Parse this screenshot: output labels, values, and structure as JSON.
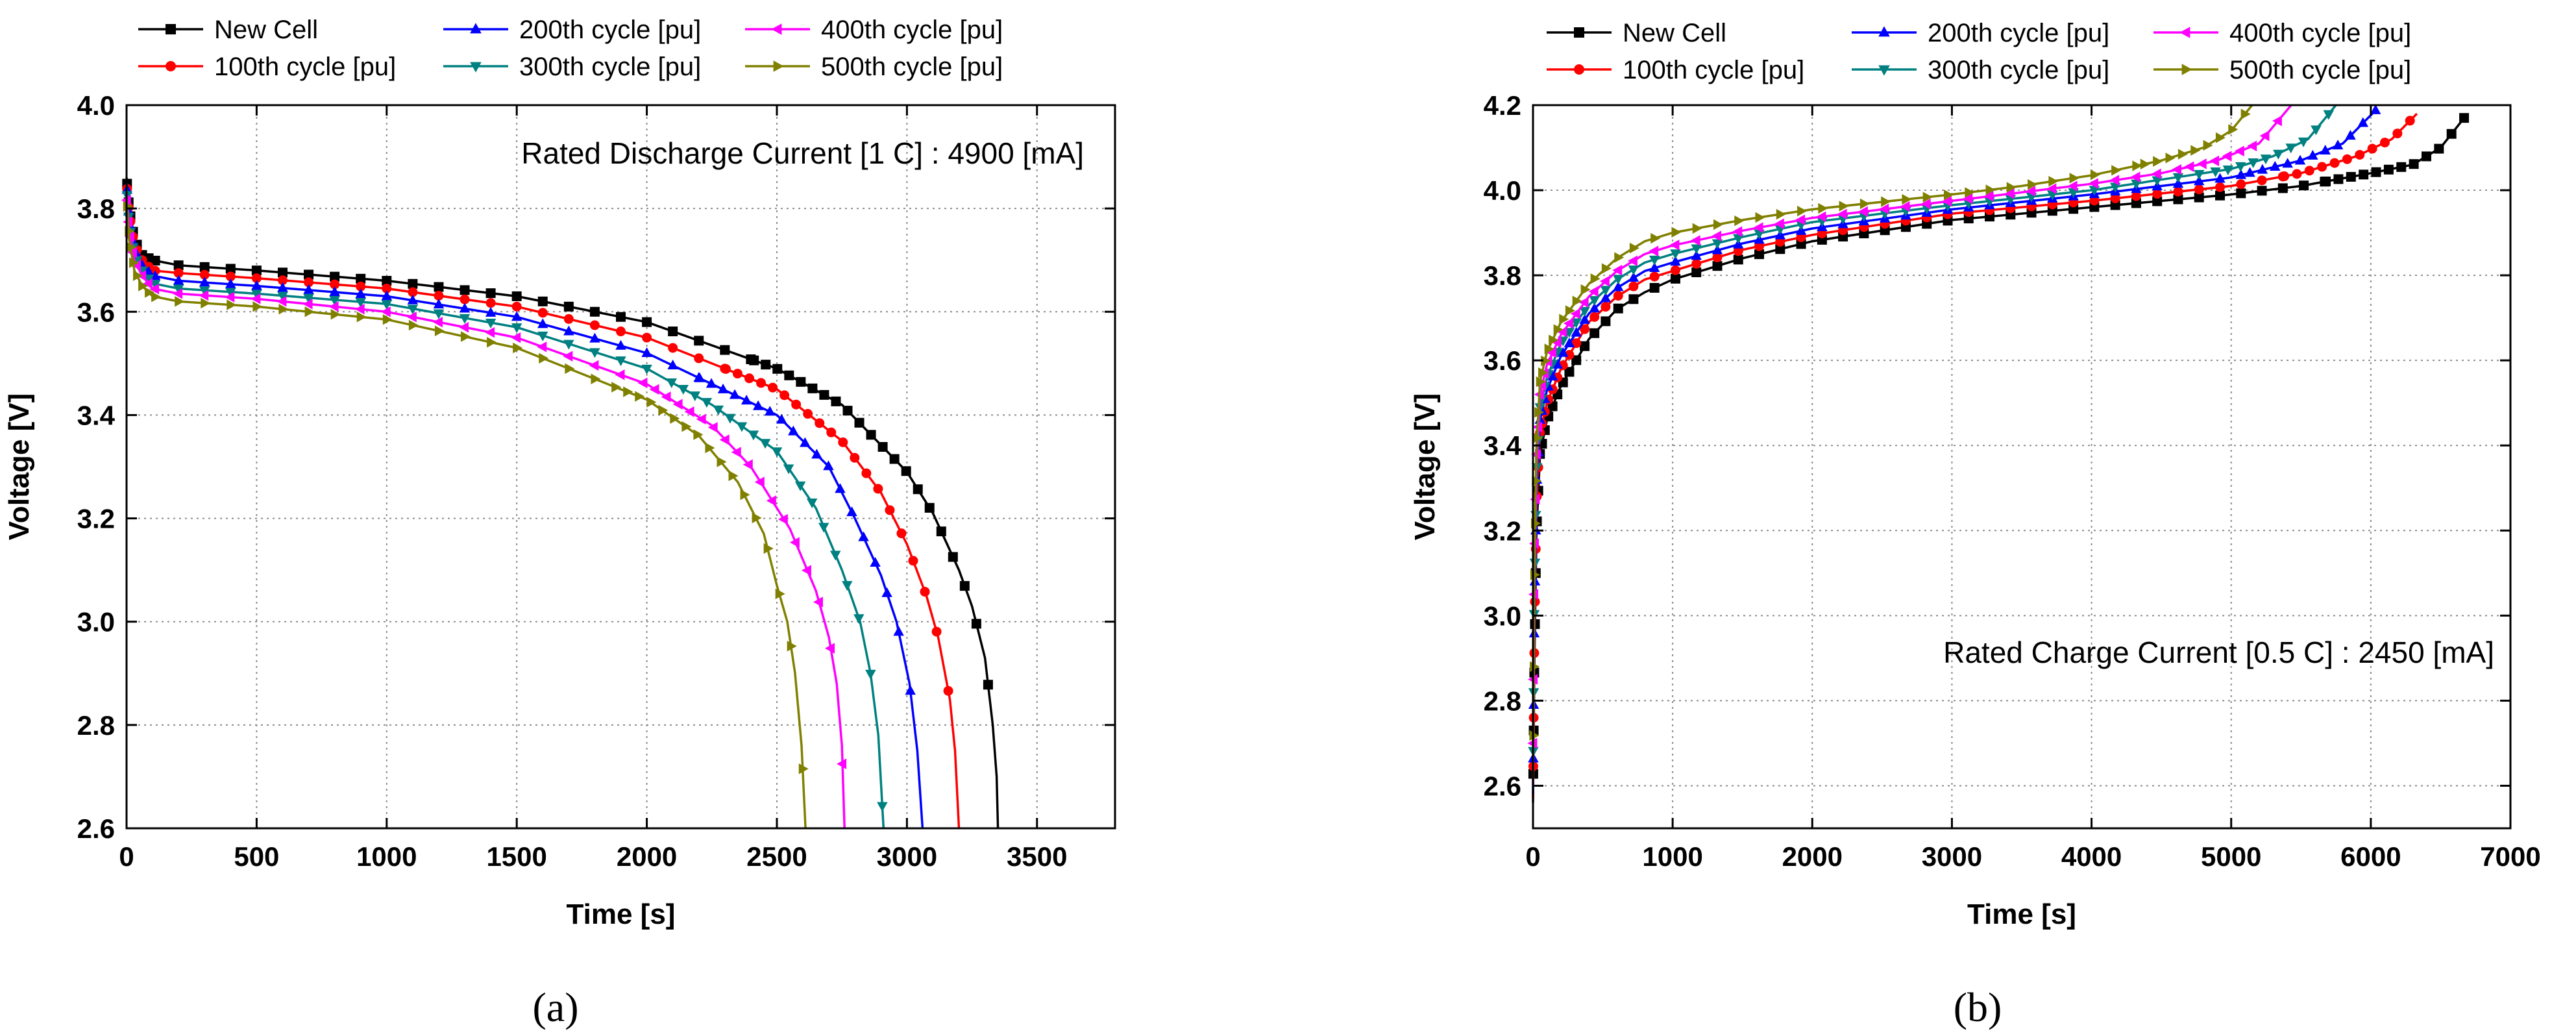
{
  "chart_data": [
    {
      "type": "line",
      "panel_label": "(a)",
      "title": "",
      "xlabel": "Time [s]",
      "ylabel": "Voltage [V]",
      "xlim": [
        0,
        3800
      ],
      "ylim": [
        2.6,
        4.0
      ],
      "x_ticks": [
        0,
        500,
        1000,
        1500,
        2000,
        2500,
        3000,
        3500
      ],
      "y_ticks": [
        "2.6",
        "2.8",
        "3.0",
        "3.2",
        "3.4",
        "3.6",
        "3.8",
        "4.0"
      ],
      "grid": true,
      "legend_position": "above plot",
      "annotation": "Rated Discharge Current [1 C] : 4900 [mA]",
      "series": [
        {
          "name": "New Cell",
          "color": "#000000",
          "marker": "square",
          "end_time": 3350,
          "points": [
            [
              0,
              3.86
            ],
            [
              10,
              3.8
            ],
            [
              30,
              3.74
            ],
            [
              60,
              3.71
            ],
            [
              100,
              3.7
            ],
            [
              200,
              3.69
            ],
            [
              500,
              3.68
            ],
            [
              1000,
              3.66
            ],
            [
              1500,
              3.63
            ],
            [
              2000,
              3.58
            ],
            [
              2500,
              3.49
            ],
            [
              2750,
              3.42
            ],
            [
              3000,
              3.29
            ],
            [
              3100,
              3.21
            ],
            [
              3200,
              3.1
            ],
            [
              3250,
              3.03
            ],
            [
              3300,
              2.93
            ],
            [
              3330,
              2.8
            ],
            [
              3345,
              2.7
            ],
            [
              3350,
              2.6
            ]
          ]
        },
        {
          "name": "100th cycle [pu]",
          "color": "#ff0000",
          "marker": "circle",
          "end_time": 3200,
          "points": [
            [
              0,
              3.85
            ],
            [
              10,
              3.79
            ],
            [
              30,
              3.73
            ],
            [
              60,
              3.7
            ],
            [
              100,
              3.68
            ],
            [
              200,
              3.675
            ],
            [
              500,
              3.665
            ],
            [
              1000,
              3.645
            ],
            [
              1500,
              3.61
            ],
            [
              2000,
              3.55
            ],
            [
              2500,
              3.45
            ],
            [
              2750,
              3.35
            ],
            [
              2900,
              3.25
            ],
            [
              3000,
              3.15
            ],
            [
              3075,
              3.05
            ],
            [
              3120,
              2.97
            ],
            [
              3165,
              2.85
            ],
            [
              3185,
              2.75
            ],
            [
              3200,
              2.6
            ]
          ]
        },
        {
          "name": "200th cycle [pu]",
          "color": "#0000ff",
          "marker": "triangle-up",
          "end_time": 3060,
          "points": [
            [
              0,
              3.85
            ],
            [
              10,
              3.78
            ],
            [
              30,
              3.72
            ],
            [
              60,
              3.69
            ],
            [
              100,
              3.67
            ],
            [
              200,
              3.66
            ],
            [
              500,
              3.65
            ],
            [
              1000,
              3.63
            ],
            [
              1500,
              3.59
            ],
            [
              2000,
              3.52
            ],
            [
              2500,
              3.4
            ],
            [
              2700,
              3.3
            ],
            [
              2800,
              3.2
            ],
            [
              2900,
              3.09
            ],
            [
              2960,
              3.0
            ],
            [
              3010,
              2.88
            ],
            [
              3040,
              2.75
            ],
            [
              3060,
              2.6
            ]
          ]
        },
        {
          "name": "300th cycle [pu]",
          "color": "#008080",
          "marker": "triangle-down",
          "end_time": 2910,
          "points": [
            [
              0,
              3.84
            ],
            [
              10,
              3.77
            ],
            [
              30,
              3.71
            ],
            [
              60,
              3.68
            ],
            [
              100,
              3.655
            ],
            [
              200,
              3.645
            ],
            [
              500,
              3.635
            ],
            [
              1000,
              3.615
            ],
            [
              1500,
              3.57
            ],
            [
              2000,
              3.49
            ],
            [
              2250,
              3.42
            ],
            [
              2500,
              3.33
            ],
            [
              2650,
              3.22
            ],
            [
              2750,
              3.1
            ],
            [
              2820,
              3.0
            ],
            [
              2860,
              2.9
            ],
            [
              2890,
              2.78
            ],
            [
              2910,
              2.6
            ]
          ]
        },
        {
          "name": "400th cycle [pu]",
          "color": "#ff00ff",
          "marker": "triangle-left",
          "end_time": 2760,
          "points": [
            [
              0,
              3.83
            ],
            [
              10,
              3.76
            ],
            [
              30,
              3.7
            ],
            [
              60,
              3.67
            ],
            [
              100,
              3.645
            ],
            [
              200,
              3.635
            ],
            [
              500,
              3.625
            ],
            [
              1000,
              3.6
            ],
            [
              1500,
              3.55
            ],
            [
              2000,
              3.46
            ],
            [
              2250,
              3.38
            ],
            [
              2400,
              3.3
            ],
            [
              2550,
              3.18
            ],
            [
              2650,
              3.06
            ],
            [
              2700,
              2.97
            ],
            [
              2730,
              2.88
            ],
            [
              2750,
              2.76
            ],
            [
              2760,
              2.6
            ]
          ]
        },
        {
          "name": "500th cycle [pu]",
          "color": "#808000",
          "marker": "triangle-right",
          "end_time": 2610,
          "points": [
            [
              0,
              3.82
            ],
            [
              10,
              3.74
            ],
            [
              30,
              3.68
            ],
            [
              60,
              3.65
            ],
            [
              100,
              3.63
            ],
            [
              200,
              3.62
            ],
            [
              500,
              3.61
            ],
            [
              1000,
              3.585
            ],
            [
              1500,
              3.53
            ],
            [
              2000,
              3.43
            ],
            [
              2200,
              3.36
            ],
            [
              2350,
              3.27
            ],
            [
              2450,
              3.17
            ],
            [
              2500,
              3.07
            ],
            [
              2540,
              3.0
            ],
            [
              2570,
              2.9
            ],
            [
              2595,
              2.76
            ],
            [
              2610,
              2.6
            ]
          ]
        }
      ]
    },
    {
      "type": "line",
      "panel_label": "(b)",
      "title": "",
      "xlabel": "Time [s]",
      "ylabel": "Voltage [V]",
      "xlim": [
        0,
        7000
      ],
      "ylim": [
        2.5,
        4.2
      ],
      "x_ticks": [
        0,
        1000,
        2000,
        3000,
        4000,
        5000,
        6000,
        7000
      ],
      "y_ticks": [
        "2.6",
        "2.8",
        "3.0",
        "3.2",
        "3.4",
        "3.6",
        "3.8",
        "4.0",
        "4.2"
      ],
      "grid": true,
      "legend_position": "above plot",
      "annotation": "Rated Charge Current [0.5 C] : 2450 [mA]",
      "series": [
        {
          "name": "New Cell",
          "color": "#000000",
          "marker": "square",
          "end_time": 6680,
          "points": [
            [
              0,
              2.56
            ],
            [
              10,
              2.9
            ],
            [
              25,
              3.2
            ],
            [
              50,
              3.38
            ],
            [
              100,
              3.46
            ],
            [
              200,
              3.54
            ],
            [
              400,
              3.65
            ],
            [
              600,
              3.72
            ],
            [
              800,
              3.76
            ],
            [
              1000,
              3.79
            ],
            [
              1500,
              3.84
            ],
            [
              2000,
              3.88
            ],
            [
              3000,
              3.93
            ],
            [
              4000,
              3.96
            ],
            [
              5000,
              3.99
            ],
            [
              5500,
              4.01
            ],
            [
              6000,
              4.04
            ],
            [
              6300,
              4.06
            ],
            [
              6500,
              4.1
            ],
            [
              6680,
              4.175
            ]
          ]
        },
        {
          "name": "100th cycle [pu]",
          "color": "#ff0000",
          "marker": "circle",
          "end_time": 6330,
          "points": [
            [
              0,
              2.57
            ],
            [
              10,
              2.95
            ],
            [
              25,
              3.26
            ],
            [
              50,
              3.43
            ],
            [
              100,
              3.5
            ],
            [
              200,
              3.58
            ],
            [
              400,
              3.69
            ],
            [
              600,
              3.75
            ],
            [
              800,
              3.79
            ],
            [
              1000,
              3.81
            ],
            [
              1500,
              3.86
            ],
            [
              2000,
              3.895
            ],
            [
              3000,
              3.945
            ],
            [
              4000,
              3.975
            ],
            [
              5000,
              4.01
            ],
            [
              5500,
              4.04
            ],
            [
              5900,
              4.08
            ],
            [
              6150,
              4.12
            ],
            [
              6330,
              4.18
            ]
          ]
        },
        {
          "name": "200th cycle [pu]",
          "color": "#0000ff",
          "marker": "triangle-up",
          "end_time": 6040,
          "points": [
            [
              0,
              2.58
            ],
            [
              10,
              3.0
            ],
            [
              25,
              3.3
            ],
            [
              50,
              3.46
            ],
            [
              100,
              3.53
            ],
            [
              200,
              3.61
            ],
            [
              400,
              3.71
            ],
            [
              600,
              3.77
            ],
            [
              800,
              3.81
            ],
            [
              1000,
              3.83
            ],
            [
              1500,
              3.875
            ],
            [
              2000,
              3.91
            ],
            [
              3000,
              3.955
            ],
            [
              4000,
              3.99
            ],
            [
              4500,
              4.01
            ],
            [
              5000,
              4.03
            ],
            [
              5500,
              4.07
            ],
            [
              5800,
              4.11
            ],
            [
              6040,
              4.19
            ]
          ]
        },
        {
          "name": "300th cycle [pu]",
          "color": "#008080",
          "marker": "triangle-down",
          "end_time": 5750,
          "points": [
            [
              0,
              2.59
            ],
            [
              10,
              3.05
            ],
            [
              25,
              3.33
            ],
            [
              50,
              3.49
            ],
            [
              100,
              3.56
            ],
            [
              200,
              3.64
            ],
            [
              400,
              3.73
            ],
            [
              600,
              3.79
            ],
            [
              800,
              3.83
            ],
            [
              1000,
              3.85
            ],
            [
              1500,
              3.89
            ],
            [
              2000,
              3.925
            ],
            [
              3000,
              3.965
            ],
            [
              4000,
              4.0
            ],
            [
              4500,
              4.025
            ],
            [
              5000,
              4.05
            ],
            [
              5300,
              4.08
            ],
            [
              5550,
              4.12
            ],
            [
              5750,
              4.2
            ]
          ]
        },
        {
          "name": "400th cycle [pu]",
          "color": "#ff00ff",
          "marker": "triangle-left",
          "end_time": 5430,
          "points": [
            [
              0,
              2.6
            ],
            [
              10,
              3.1
            ],
            [
              25,
              3.36
            ],
            [
              50,
              3.52
            ],
            [
              100,
              3.59
            ],
            [
              200,
              3.66
            ],
            [
              400,
              3.75
            ],
            [
              600,
              3.81
            ],
            [
              800,
              3.85
            ],
            [
              1000,
              3.87
            ],
            [
              1500,
              3.905
            ],
            [
              2000,
              3.935
            ],
            [
              3000,
              3.975
            ],
            [
              4000,
              4.015
            ],
            [
              4500,
              4.04
            ],
            [
              4900,
              4.07
            ],
            [
              5200,
              4.11
            ],
            [
              5430,
              4.2
            ]
          ]
        },
        {
          "name": "500th cycle [pu]",
          "color": "#808000",
          "marker": "triangle-right",
          "end_time": 5150,
          "points": [
            [
              0,
              2.61
            ],
            [
              10,
              3.15
            ],
            [
              25,
              3.4
            ],
            [
              50,
              3.55
            ],
            [
              100,
              3.62
            ],
            [
              200,
              3.69
            ],
            [
              400,
              3.78
            ],
            [
              600,
              3.84
            ],
            [
              800,
              3.88
            ],
            [
              1000,
              3.9
            ],
            [
              1500,
              3.93
            ],
            [
              2000,
              3.955
            ],
            [
              3000,
              3.99
            ],
            [
              3500,
              4.01
            ],
            [
              4000,
              4.035
            ],
            [
              4500,
              4.07
            ],
            [
              4800,
              4.1
            ],
            [
              5000,
              4.14
            ],
            [
              5150,
              4.2
            ]
          ]
        }
      ]
    }
  ]
}
